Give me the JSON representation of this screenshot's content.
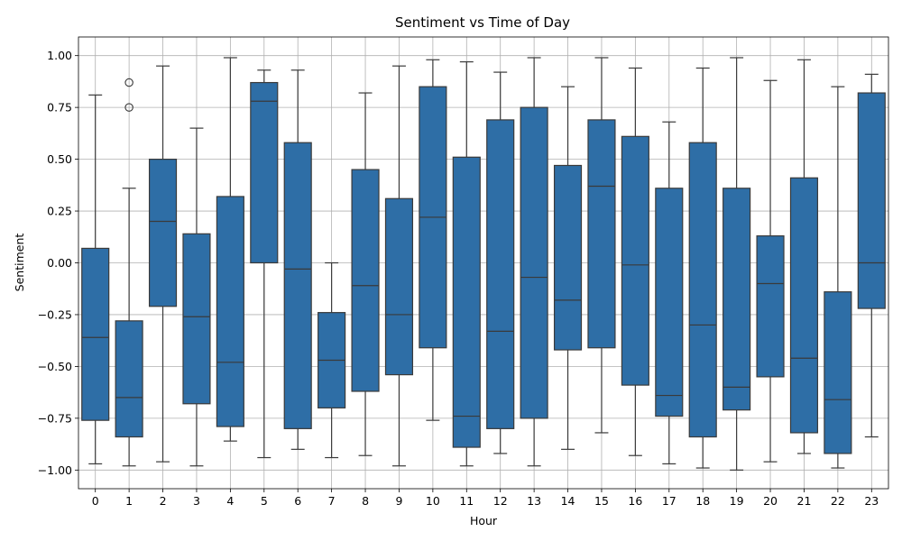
{
  "chart_data": {
    "type": "box",
    "title": "Sentiment vs Time of Day",
    "xlabel": "Hour",
    "ylabel": "Sentiment",
    "ylim": [
      -1.09,
      1.09
    ],
    "yticks": [
      -1.0,
      -0.75,
      -0.5,
      -0.25,
      0.0,
      0.25,
      0.5,
      0.75,
      1.0
    ],
    "ytick_labels": [
      "−1.00",
      "−0.75",
      "−0.50",
      "−0.25",
      "0.00",
      "0.25",
      "0.50",
      "0.75",
      "1.00"
    ],
    "grid": true,
    "box_color": "#2e6ea6",
    "edge_color": "#3a3a3a",
    "categories": [
      "0",
      "1",
      "2",
      "3",
      "4",
      "5",
      "6",
      "7",
      "8",
      "9",
      "10",
      "11",
      "12",
      "13",
      "14",
      "15",
      "16",
      "17",
      "18",
      "19",
      "20",
      "21",
      "22",
      "23"
    ],
    "boxes": [
      {
        "whisker_low": -0.97,
        "q1": -0.76,
        "median": -0.36,
        "q3": 0.07,
        "whisker_high": 0.81,
        "outliers": []
      },
      {
        "whisker_low": -0.98,
        "q1": -0.84,
        "median": -0.65,
        "q3": -0.28,
        "whisker_high": 0.36,
        "outliers": [
          0.75,
          0.87
        ]
      },
      {
        "whisker_low": -0.96,
        "q1": -0.21,
        "median": 0.2,
        "q3": 0.5,
        "whisker_high": 0.95,
        "outliers": []
      },
      {
        "whisker_low": -0.98,
        "q1": -0.68,
        "median": -0.26,
        "q3": 0.14,
        "whisker_high": 0.65,
        "outliers": []
      },
      {
        "whisker_low": -0.86,
        "q1": -0.79,
        "median": -0.48,
        "q3": 0.32,
        "whisker_high": 0.99,
        "outliers": []
      },
      {
        "whisker_low": -0.94,
        "q1": 0.0,
        "median": 0.78,
        "q3": 0.87,
        "whisker_high": 0.93,
        "outliers": []
      },
      {
        "whisker_low": -0.9,
        "q1": -0.8,
        "median": -0.03,
        "q3": 0.58,
        "whisker_high": 0.93,
        "outliers": []
      },
      {
        "whisker_low": -0.94,
        "q1": -0.7,
        "median": -0.47,
        "q3": -0.24,
        "whisker_high": 0.0,
        "outliers": []
      },
      {
        "whisker_low": -0.93,
        "q1": -0.62,
        "median": -0.11,
        "q3": 0.45,
        "whisker_high": 0.82,
        "outliers": []
      },
      {
        "whisker_low": -0.98,
        "q1": -0.54,
        "median": -0.25,
        "q3": 0.31,
        "whisker_high": 0.95,
        "outliers": []
      },
      {
        "whisker_low": -0.76,
        "q1": -0.41,
        "median": 0.22,
        "q3": 0.85,
        "whisker_high": 0.98,
        "outliers": []
      },
      {
        "whisker_low": -0.98,
        "q1": -0.89,
        "median": -0.74,
        "q3": 0.51,
        "whisker_high": 0.97,
        "outliers": []
      },
      {
        "whisker_low": -0.92,
        "q1": -0.8,
        "median": -0.33,
        "q3": 0.69,
        "whisker_high": 0.92,
        "outliers": []
      },
      {
        "whisker_low": -0.98,
        "q1": -0.75,
        "median": -0.07,
        "q3": 0.75,
        "whisker_high": 0.99,
        "outliers": []
      },
      {
        "whisker_low": -0.9,
        "q1": -0.42,
        "median": -0.18,
        "q3": 0.47,
        "whisker_high": 0.85,
        "outliers": []
      },
      {
        "whisker_low": -0.82,
        "q1": -0.41,
        "median": 0.37,
        "q3": 0.69,
        "whisker_high": 0.99,
        "outliers": []
      },
      {
        "whisker_low": -0.93,
        "q1": -0.59,
        "median": -0.01,
        "q3": 0.61,
        "whisker_high": 0.94,
        "outliers": []
      },
      {
        "whisker_low": -0.97,
        "q1": -0.74,
        "median": -0.64,
        "q3": 0.36,
        "whisker_high": 0.68,
        "outliers": []
      },
      {
        "whisker_low": -0.99,
        "q1": -0.84,
        "median": -0.3,
        "q3": 0.58,
        "whisker_high": 0.94,
        "outliers": []
      },
      {
        "whisker_low": -1.0,
        "q1": -0.71,
        "median": -0.6,
        "q3": 0.36,
        "whisker_high": 0.99,
        "outliers": []
      },
      {
        "whisker_low": -0.96,
        "q1": -0.55,
        "median": -0.1,
        "q3": 0.13,
        "whisker_high": 0.88,
        "outliers": []
      },
      {
        "whisker_low": -0.92,
        "q1": -0.82,
        "median": -0.46,
        "q3": 0.41,
        "whisker_high": 0.98,
        "outliers": []
      },
      {
        "whisker_low": -0.99,
        "q1": -0.92,
        "median": -0.66,
        "q3": -0.14,
        "whisker_high": 0.85,
        "outliers": []
      },
      {
        "whisker_low": -0.84,
        "q1": -0.22,
        "median": 0.0,
        "q3": 0.82,
        "whisker_high": 0.91,
        "outliers": []
      }
    ]
  }
}
